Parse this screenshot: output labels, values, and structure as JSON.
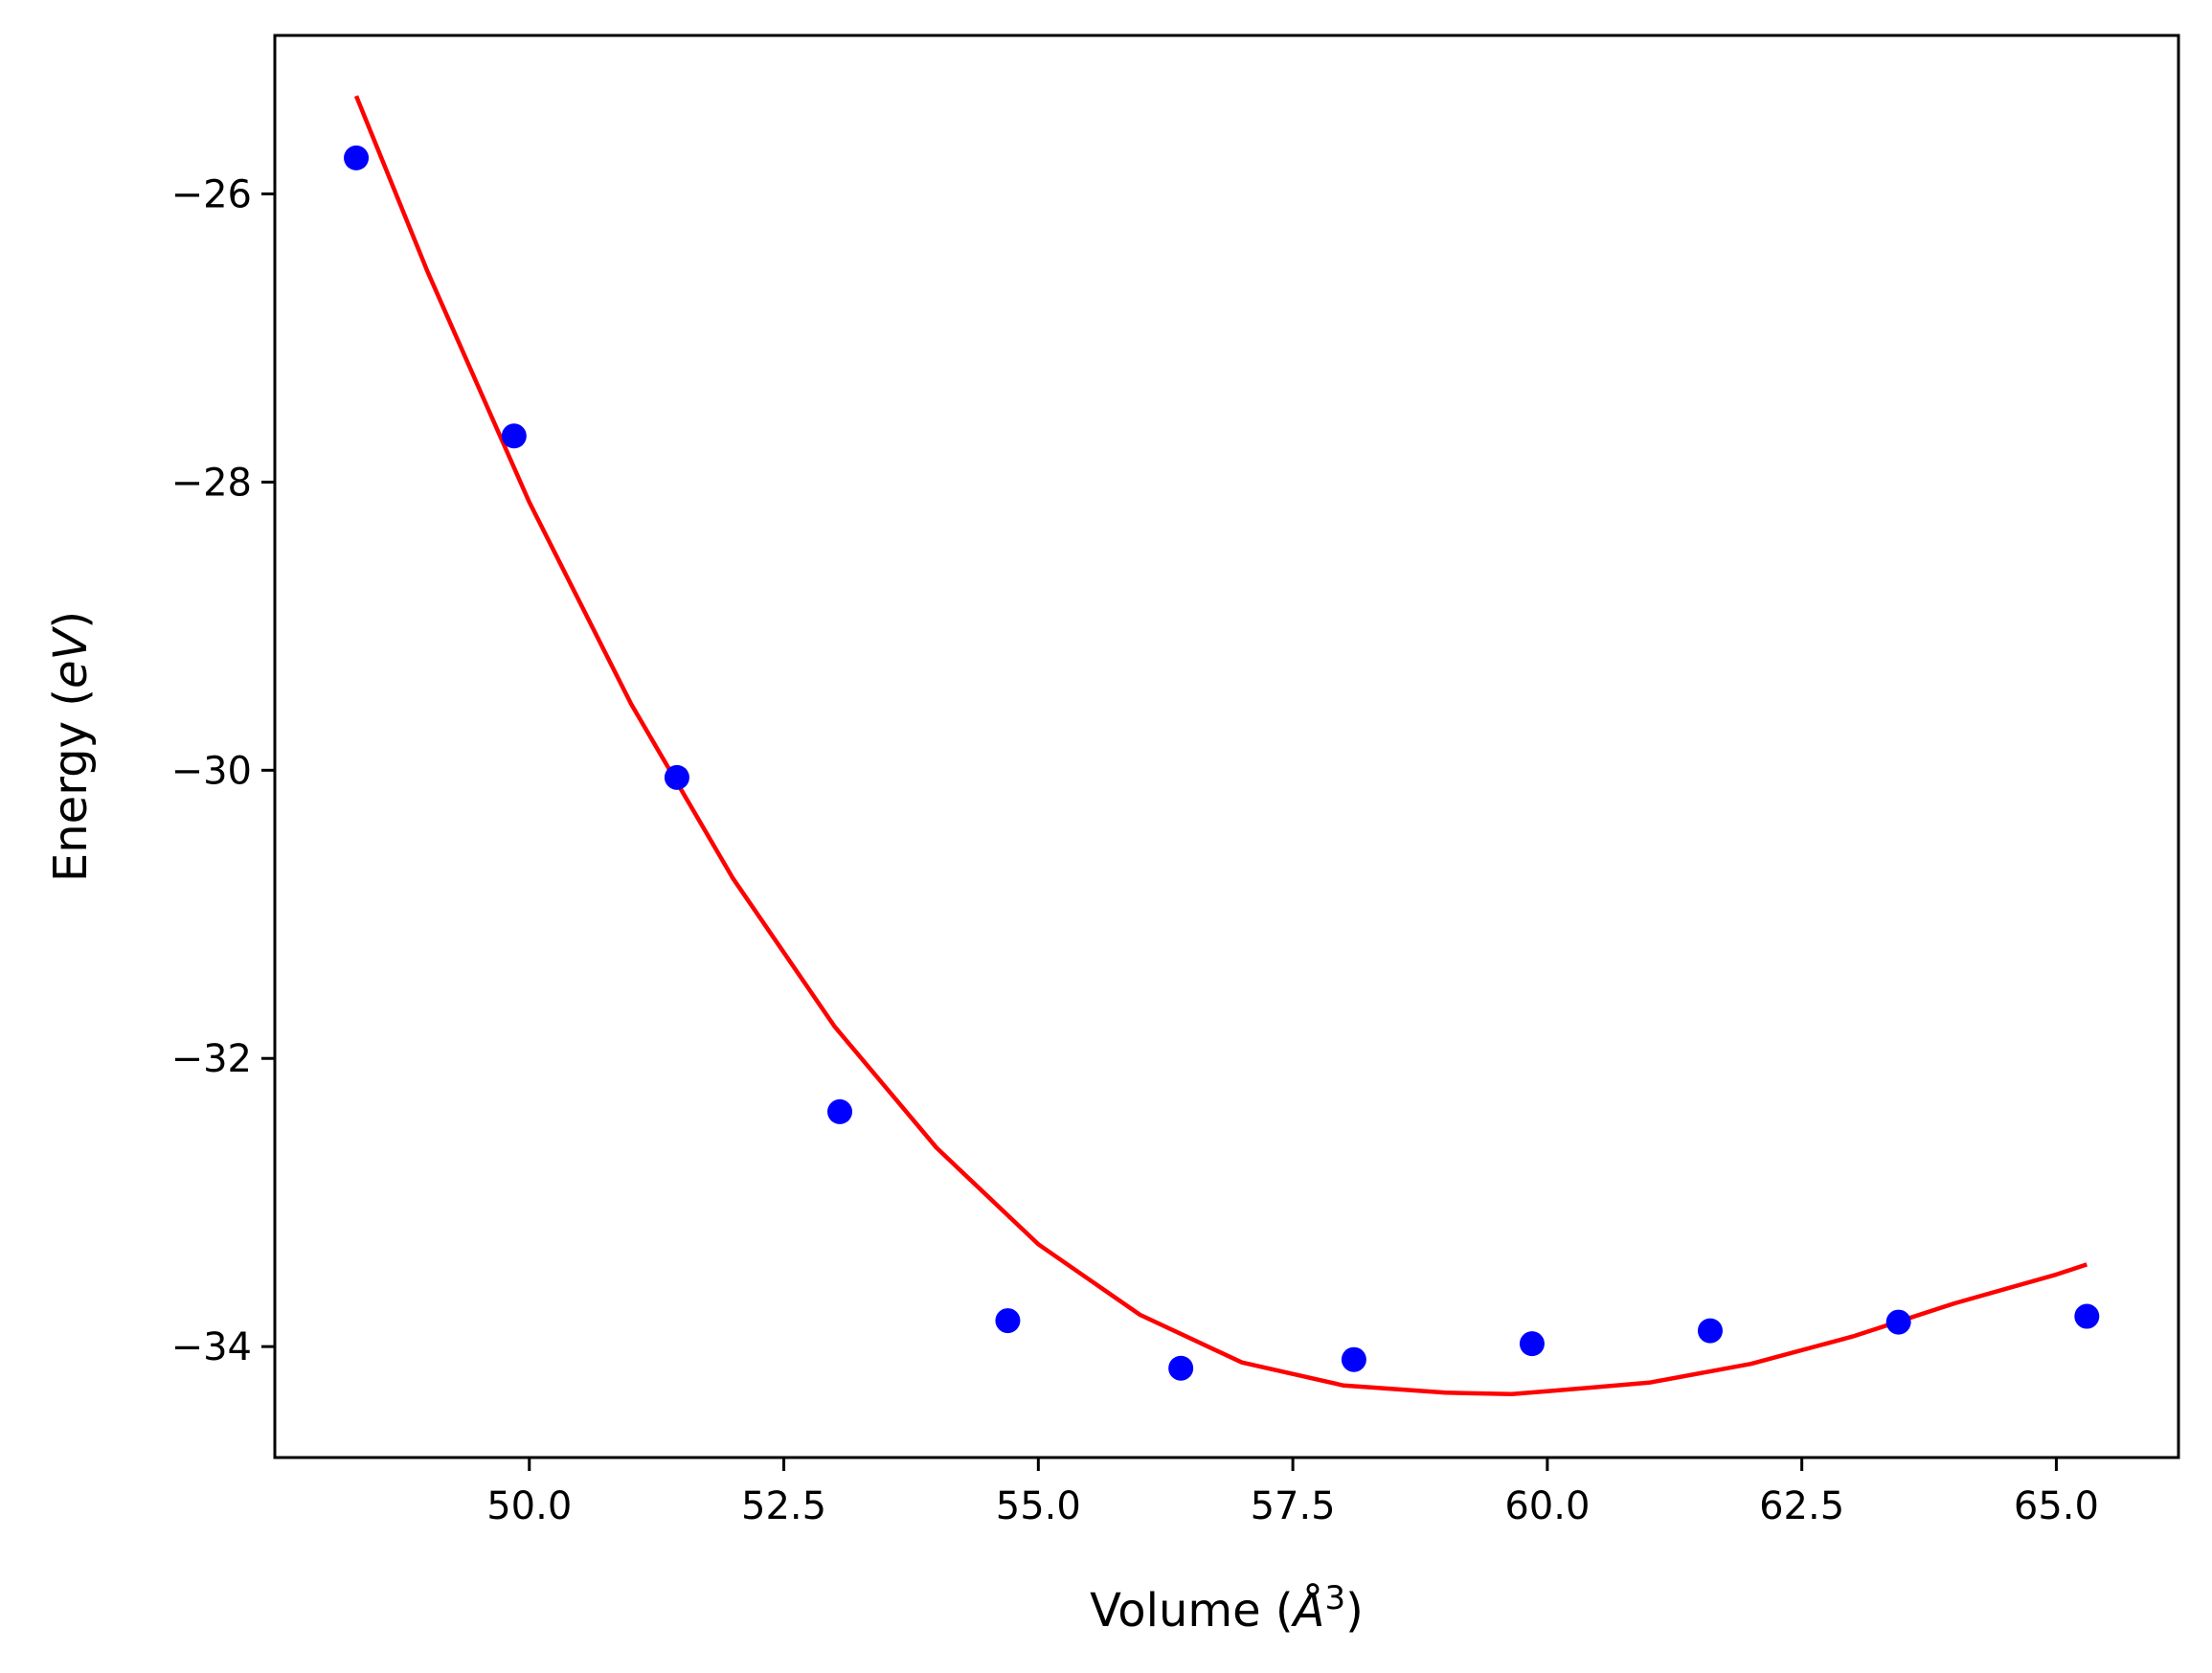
{
  "chart_data": {
    "type": "scatter",
    "title": "",
    "xlabel": {
      "main": "Volume (",
      "italic": "Å",
      "sup": "3",
      "end": ")"
    },
    "ylabel": {
      "main": "Energy (",
      "italic": "eV",
      "end": ")"
    },
    "xlim": [
      47.5,
      66.2
    ],
    "ylim": [
      -34.77,
      -24.9
    ],
    "xticks": [
      50.0,
      52.5,
      55.0,
      57.5,
      60.0,
      62.5,
      65.0
    ],
    "xtick_labels": [
      "50.0",
      "52.5",
      "55.0",
      "57.5",
      "60.0",
      "62.5",
      "65.0"
    ],
    "yticks": [
      -26,
      -28,
      -30,
      -32,
      -34
    ],
    "ytick_labels": [
      "−26",
      "−28",
      "−30",
      "−32",
      "−34"
    ],
    "grid": false,
    "series": [
      {
        "kind": "scatter",
        "color": "#0000ff",
        "x": [
          48.3,
          49.85,
          51.45,
          53.05,
          54.7,
          56.4,
          58.1,
          59.85,
          61.6,
          63.45,
          65.3
        ],
        "y": [
          -25.75,
          -27.68,
          -30.05,
          -32.37,
          -33.82,
          -34.15,
          -34.09,
          -33.98,
          -33.89,
          -33.83,
          -33.79
        ]
      },
      {
        "kind": "line",
        "color": "#ff0000",
        "x": [
          48.3,
          49.0,
          50.0,
          51.0,
          52.0,
          53.0,
          54.0,
          55.0,
          56.0,
          57.0,
          58.0,
          59.0,
          59.65,
          60.0,
          61.0,
          62.0,
          63.0,
          64.0,
          65.0,
          65.3
        ],
        "y": [
          -25.32,
          -26.54,
          -28.14,
          -29.54,
          -30.75,
          -31.78,
          -32.62,
          -33.29,
          -33.78,
          -34.11,
          -34.27,
          -34.32,
          -34.33,
          -34.31,
          -34.25,
          -34.12,
          -33.93,
          -33.7,
          -33.5,
          -33.43
        ]
      }
    ]
  }
}
